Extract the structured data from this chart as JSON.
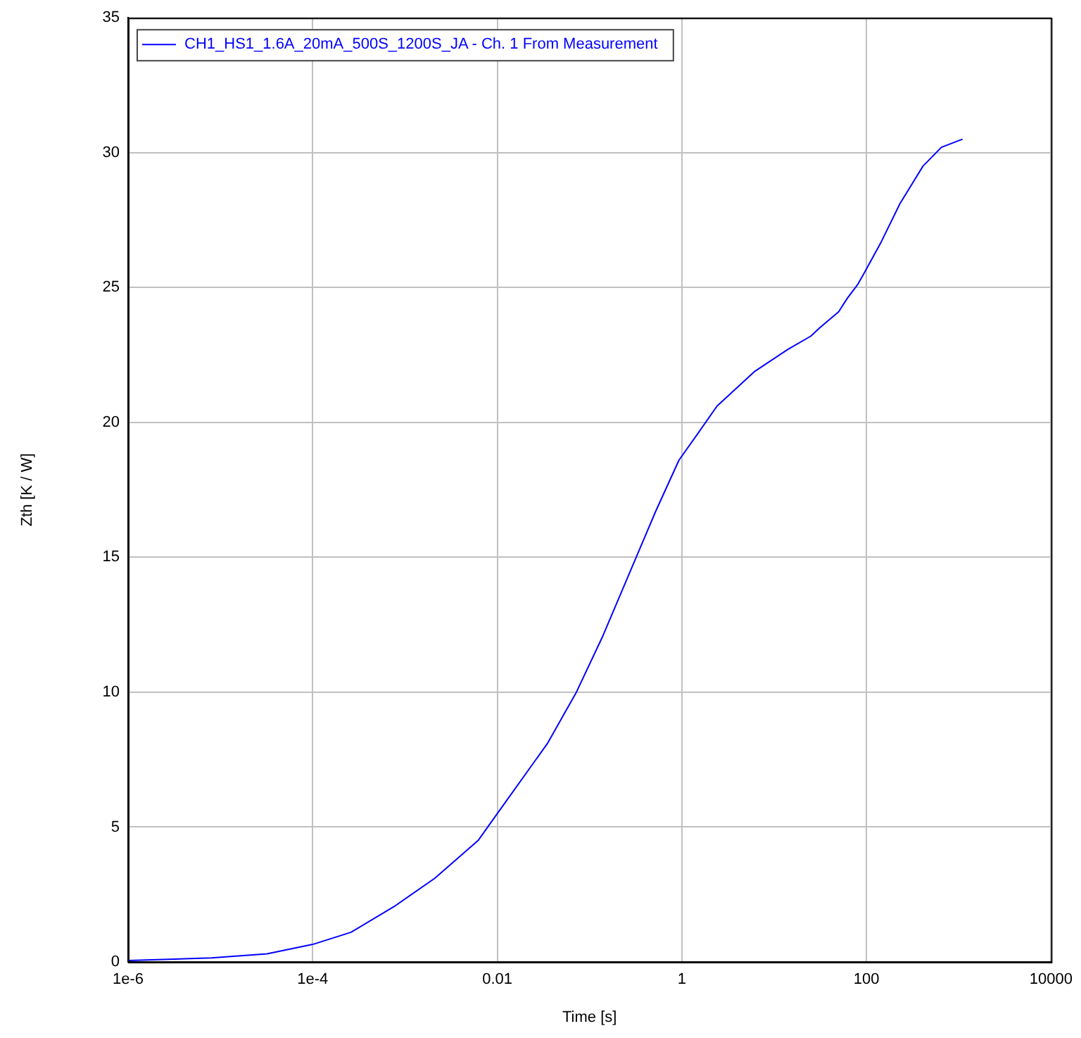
{
  "chart_data": {
    "type": "line",
    "xlabel": "Time [s]",
    "ylabel": "Zth [K / W]",
    "log": "x",
    "grid": true,
    "legend": "top left",
    "marker": "none",
    "line_style": "solid",
    "xlim": [
      1e-06,
      10000
    ],
    "xticks": [
      {
        "value": 1e-06,
        "label": "1e-6"
      },
      {
        "value": 0.0001,
        "label": "1e-4"
      },
      0.01,
      1,
      100,
      10000
    ],
    "ylim": [
      0,
      35
    ],
    "yticks": [
      0,
      5,
      10,
      15,
      20,
      25,
      30,
      35
    ],
    "series": [
      {
        "name": "CH1_HS1_1.6A_20mA_500S_1200S_JA - Ch. 1 From Measurement",
        "color": "#0000ff",
        "x": [
          1e-06,
          8e-06,
          3.2e-05,
          0.0001,
          0.00026,
          0.00076,
          0.0021,
          0.0062,
          0.01,
          0.035,
          0.072,
          0.14,
          0.32,
          0.52,
          0.93,
          1.5,
          2.4,
          6.2,
          14,
          25,
          31,
          50,
          62,
          80,
          95,
          145,
          230,
          410,
          650,
          1100
        ],
        "values": [
          0.05,
          0.15,
          0.3,
          0.65,
          1.1,
          2.05,
          3.1,
          4.5,
          5.5,
          8.1,
          10,
          12.1,
          15,
          16.7,
          18.6,
          19.6,
          20.6,
          21.9,
          22.7,
          23.2,
          23.5,
          24.1,
          24.6,
          25.1,
          25.55,
          26.7,
          28.1,
          29.5,
          30.2,
          30.5
        ]
      }
    ]
  }
}
